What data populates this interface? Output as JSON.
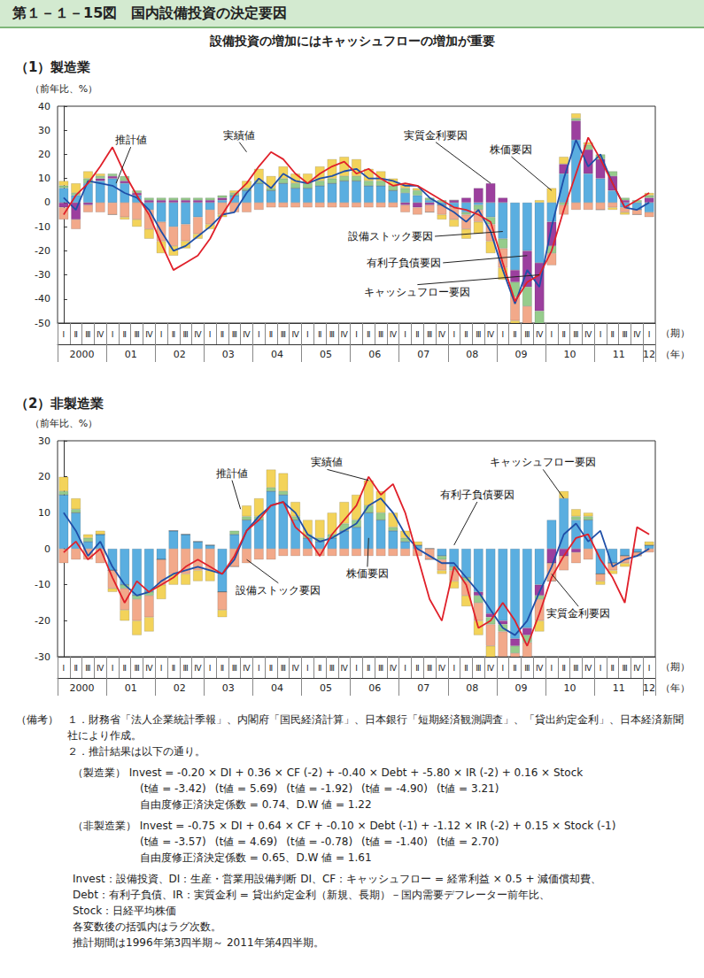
{
  "header": {
    "title": "第１－１－15図　国内設備投資の決定要因",
    "subtitle": "設備投資の増加にはキャッシュフローの増加が重要"
  },
  "chart_data": [
    {
      "type": "bar",
      "title": "（1）製造業",
      "ylabel": "（前年比、%）",
      "xlabel": "（期）",
      "year_label": "（年）",
      "stacked": true,
      "grid": false,
      "categories": [
        "Ⅰ",
        "Ⅱ",
        "Ⅲ",
        "Ⅳ",
        "Ⅰ",
        "Ⅱ",
        "Ⅲ",
        "Ⅳ",
        "Ⅰ",
        "Ⅱ",
        "Ⅲ",
        "Ⅳ",
        "Ⅰ",
        "Ⅱ",
        "Ⅲ",
        "Ⅳ",
        "Ⅰ",
        "Ⅱ",
        "Ⅲ",
        "Ⅳ",
        "Ⅰ",
        "Ⅱ",
        "Ⅲ",
        "Ⅳ",
        "Ⅰ",
        "Ⅱ",
        "Ⅲ",
        "Ⅳ",
        "Ⅰ",
        "Ⅱ",
        "Ⅲ",
        "Ⅳ",
        "Ⅰ",
        "Ⅱ",
        "Ⅲ",
        "Ⅳ",
        "Ⅰ",
        "Ⅱ",
        "Ⅲ",
        "Ⅳ",
        "Ⅰ",
        "Ⅱ",
        "Ⅲ",
        "Ⅳ",
        "Ⅰ",
        "Ⅱ",
        "Ⅲ",
        "Ⅳ",
        "Ⅰ"
      ],
      "years": [
        "2000",
        "01",
        "02",
        "03",
        "04",
        "05",
        "06",
        "07",
        "08",
        "09",
        "10",
        "11",
        "12"
      ],
      "ylim": [
        -50,
        40
      ],
      "yticks": [
        -50,
        -40,
        -30,
        -20,
        -10,
        0,
        10,
        20,
        30,
        40
      ],
      "series": [
        {
          "name": "キャッシュフロー要因",
          "type": "bar",
          "color": "#5aaee0",
          "values": [
            6,
            3,
            8,
            9,
            10,
            8,
            3,
            -3,
            -8,
            -10,
            -9,
            -6,
            -3,
            1,
            3,
            5,
            8,
            5,
            8,
            6,
            6,
            7,
            8,
            9,
            9,
            7,
            7,
            5,
            4,
            3,
            1,
            -1,
            -2,
            -4,
            -1,
            -6,
            -15,
            -28,
            -20,
            -25,
            -8,
            12,
            26,
            12,
            10,
            5,
            -2,
            -3,
            -4
          ]
        },
        {
          "name": "有利子負債要因",
          "type": "bar",
          "color": "#9c3f9e",
          "values": [
            -2,
            -7,
            -1,
            1,
            1,
            1,
            1,
            1,
            1,
            1,
            1,
            1,
            1,
            1,
            0,
            0,
            0,
            0,
            0,
            0,
            0,
            0,
            0,
            0,
            0,
            0,
            0,
            0,
            -1,
            -2,
            -1,
            0,
            1,
            2,
            6,
            8,
            2,
            -5,
            -15,
            -20,
            -10,
            4,
            8,
            10,
            8,
            6,
            1,
            0,
            2
          ]
        },
        {
          "name": "設備ストック要因",
          "type": "bar",
          "color": "#96cc8c",
          "values": [
            1,
            1,
            2,
            1,
            1,
            2,
            1,
            1,
            1,
            1,
            1,
            1,
            1,
            1,
            1,
            1,
            1,
            1,
            2,
            2,
            2,
            2,
            2,
            2,
            2,
            2,
            2,
            2,
            2,
            2,
            1,
            1,
            0,
            -1,
            -2,
            -3,
            -4,
            -6,
            -8,
            -6,
            -3,
            -1,
            1,
            2,
            2,
            2,
            1,
            1,
            1
          ]
        },
        {
          "name": "実質金利要因",
          "type": "bar",
          "color": "#f2a98a",
          "values": [
            -5,
            -4,
            -3,
            -4,
            -5,
            -6,
            -7,
            -8,
            -8,
            -8,
            -7,
            -7,
            -6,
            -5,
            -4,
            -4,
            -3,
            -2,
            -2,
            -2,
            -2,
            -2,
            -2,
            -2,
            -2,
            -2,
            -2,
            -2,
            -3,
            -3,
            -3,
            -4,
            -5,
            -6,
            -5,
            -7,
            -8,
            -10,
            -10,
            -8,
            -5,
            -4,
            -3,
            -3,
            -3,
            -2,
            -2,
            -2,
            -2
          ]
        },
        {
          "name": "株価要因",
          "type": "bar",
          "color": "#f3d35a",
          "values": [
            2,
            4,
            3,
            1,
            0,
            -1,
            -3,
            -4,
            -5,
            -4,
            -3,
            -2,
            -2,
            -1,
            1,
            3,
            5,
            5,
            5,
            4,
            4,
            6,
            8,
            8,
            7,
            5,
            4,
            3,
            2,
            1,
            0,
            -2,
            -3,
            -4,
            -5,
            -5,
            -5,
            -4,
            -2,
            1,
            6,
            3,
            2,
            1,
            0,
            -1,
            -1,
            0,
            1
          ]
        },
        {
          "name": "推計値",
          "type": "line",
          "color": "#1f4fa8",
          "values": [
            2,
            -3,
            9,
            8,
            7,
            4,
            2,
            -3,
            -12,
            -20,
            -18,
            -14,
            -10,
            -5,
            -4,
            4,
            10,
            6,
            12,
            9,
            8,
            10,
            11,
            13,
            14,
            10,
            10,
            9,
            7,
            7,
            2,
            -1,
            -4,
            -8,
            -3,
            -12,
            -28,
            -42,
            -28,
            -35,
            -10,
            10,
            26,
            15,
            20,
            8,
            -2,
            -3,
            0
          ]
        },
        {
          "name": "実績値",
          "type": "line",
          "color": "#e0202a",
          "values": [
            -5,
            3,
            8,
            15,
            23,
            12,
            3,
            -5,
            -17,
            -28,
            -25,
            -22,
            -15,
            -5,
            3,
            8,
            15,
            21,
            18,
            12,
            8,
            12,
            15,
            17,
            12,
            14,
            10,
            7,
            8,
            7,
            4,
            1,
            -2,
            -3,
            -5,
            -8,
            -25,
            -41,
            -33,
            -30,
            -20,
            -3,
            12,
            27,
            18,
            8,
            -2,
            1,
            4
          ]
        }
      ],
      "annotations": [
        {
          "series": "推計値",
          "x": 5.5,
          "y": 26,
          "to_x": 4.3,
          "to_y": 8
        },
        {
          "series": "実績値",
          "x": 14.4,
          "y": 28,
          "to_x": 15,
          "to_y": 21
        },
        {
          "series": "実質金利要因",
          "x": 30.5,
          "y": 28,
          "to_x": 35,
          "to_y": 8
        },
        {
          "series": "株価要因",
          "x": 36.7,
          "y": 22,
          "to_x": 40,
          "to_y": 5
        },
        {
          "series": "設備ストック要因",
          "x": 26.8,
          "y": -14,
          "to_x": 36,
          "to_y": -12
        },
        {
          "series": "有利子負債要因",
          "x": 27.9,
          "y": -25,
          "to_x": 38,
          "to_y": -22
        },
        {
          "series": "キャッシュフロー要因",
          "x": 29,
          "y": -37,
          "to_x": 39,
          "to_y": -30
        }
      ]
    },
    {
      "type": "bar",
      "title": "（2）非製造業",
      "ylabel": "（前年比、%）",
      "xlabel": "（期）",
      "year_label": "（年）",
      "stacked": true,
      "grid": false,
      "categories": [
        "Ⅰ",
        "Ⅱ",
        "Ⅲ",
        "Ⅳ",
        "Ⅰ",
        "Ⅱ",
        "Ⅲ",
        "Ⅳ",
        "Ⅰ",
        "Ⅱ",
        "Ⅲ",
        "Ⅳ",
        "Ⅰ",
        "Ⅱ",
        "Ⅲ",
        "Ⅳ",
        "Ⅰ",
        "Ⅱ",
        "Ⅲ",
        "Ⅳ",
        "Ⅰ",
        "Ⅱ",
        "Ⅲ",
        "Ⅳ",
        "Ⅰ",
        "Ⅱ",
        "Ⅲ",
        "Ⅳ",
        "Ⅰ",
        "Ⅱ",
        "Ⅲ",
        "Ⅳ",
        "Ⅰ",
        "Ⅱ",
        "Ⅲ",
        "Ⅳ",
        "Ⅰ",
        "Ⅱ",
        "Ⅲ",
        "Ⅳ",
        "Ⅰ",
        "Ⅱ",
        "Ⅲ",
        "Ⅳ",
        "Ⅰ",
        "Ⅱ",
        "Ⅲ",
        "Ⅳ",
        "Ⅰ"
      ],
      "years": [
        "2000",
        "01",
        "02",
        "03",
        "04",
        "05",
        "06",
        "07",
        "08",
        "09",
        "10",
        "11",
        "12"
      ],
      "ylim": [
        -30,
        30
      ],
      "yticks": [
        -30,
        -20,
        -10,
        0,
        10,
        20,
        30
      ],
      "series": [
        {
          "name": "キャッシュフロー要因",
          "type": "bar",
          "color": "#5aaee0",
          "values": [
            15,
            10,
            2,
            4,
            -6,
            -10,
            -13,
            -12,
            -3,
            5,
            4,
            2,
            1,
            -12,
            4,
            8,
            8,
            16,
            15,
            8,
            3,
            2,
            3,
            5,
            6,
            10,
            8,
            5,
            2,
            1,
            0,
            -2,
            -5,
            -8,
            -12,
            -18,
            -20,
            -25,
            -22,
            -10,
            8,
            14,
            8,
            8,
            -7,
            -4,
            -2,
            -1,
            1
          ]
        },
        {
          "name": "有利子負債要因",
          "type": "bar",
          "color": "#9c3f9e",
          "values": [
            0,
            0,
            0,
            0,
            0,
            0,
            0,
            0,
            0,
            0,
            0,
            0,
            0,
            0,
            0,
            0,
            0,
            0,
            0,
            0,
            0,
            0,
            0,
            0,
            0,
            0,
            0,
            0,
            0,
            0,
            0,
            0,
            0,
            0,
            -1,
            -1,
            -1,
            -2,
            -2,
            -3,
            -4,
            -2,
            -1,
            0,
            0,
            0,
            0,
            0,
            0
          ]
        },
        {
          "name": "設備ストック要因",
          "type": "bar",
          "color": "#96cc8c",
          "values": [
            1,
            1,
            1,
            0,
            0,
            -1,
            -1,
            -1,
            0,
            0,
            0,
            0,
            0,
            0,
            1,
            1,
            1,
            1,
            1,
            1,
            1,
            1,
            1,
            2,
            2,
            2,
            2,
            1,
            1,
            0,
            0,
            -1,
            -1,
            -1,
            -2,
            -2,
            -2,
            -2,
            -2,
            -1,
            0,
            0,
            1,
            1,
            0,
            0,
            0,
            0,
            0
          ]
        },
        {
          "name": "実質金利要因",
          "type": "bar",
          "color": "#f2a98a",
          "values": [
            -4,
            -3,
            -3,
            -4,
            -5,
            -6,
            -6,
            -6,
            -7,
            -7,
            -7,
            -6,
            -6,
            -5,
            -5,
            -4,
            -3,
            -3,
            -2,
            -2,
            -2,
            -2,
            -2,
            -2,
            -2,
            -2,
            -2,
            -2,
            -2,
            -2,
            -3,
            -3,
            -3,
            -4,
            -5,
            -6,
            -7,
            -7,
            -6,
            -6,
            -5,
            -4,
            -3,
            -3,
            -2,
            -2,
            -2,
            -1,
            -1
          ]
        },
        {
          "name": "株価要因",
          "type": "bar",
          "color": "#f3d35a",
          "values": [
            4,
            3,
            1,
            1,
            -1,
            -3,
            -4,
            -4,
            -4,
            -3,
            -3,
            -3,
            -3,
            -2,
            0,
            3,
            5,
            5,
            5,
            4,
            4,
            5,
            6,
            6,
            7,
            7,
            6,
            4,
            2,
            1,
            0,
            -1,
            -2,
            -3,
            -4,
            -5,
            -6,
            -6,
            -5,
            -3,
            0,
            2,
            2,
            1,
            -1,
            -1,
            -1,
            0,
            1
          ]
        },
        {
          "name": "推計値",
          "type": "line",
          "color": "#1f4fa8",
          "values": [
            10,
            5,
            -2,
            2,
            -5,
            -10,
            -13,
            -12,
            -9,
            -7,
            -6,
            -5,
            -6,
            -7,
            -3,
            5,
            9,
            12,
            13,
            10,
            4,
            2,
            3,
            5,
            7,
            12,
            14,
            10,
            4,
            0,
            -2,
            -4,
            -4,
            -8,
            -12,
            -17,
            -22,
            -24,
            -20,
            -12,
            -5,
            4,
            7,
            2,
            5,
            -5,
            -3,
            -2,
            0
          ]
        },
        {
          "name": "実績値",
          "type": "line",
          "color": "#e0202a",
          "values": [
            -1,
            2,
            -3,
            0,
            -8,
            -15,
            -9,
            -12,
            -10,
            -8,
            -5,
            -3,
            -5,
            -7,
            -2,
            5,
            8,
            12,
            13,
            6,
            3,
            -2,
            4,
            8,
            12,
            20,
            15,
            18,
            10,
            -2,
            -14,
            -20,
            -5,
            -10,
            -22,
            -20,
            -15,
            -20,
            -27,
            -18,
            -8,
            -2,
            3,
            4,
            -3,
            -8,
            -15,
            6,
            4
          ]
        }
      ],
      "annotations": [
        {
          "series": "推計値",
          "x": 13.8,
          "y": 21,
          "to_x": 14.5,
          "to_y": 11
        },
        {
          "series": "実績値",
          "x": 21.6,
          "y": 24,
          "to_x": 25,
          "to_y": 19
        },
        {
          "series": "キャッシュフロー要因",
          "x": 39.3,
          "y": 24,
          "to_x": 41,
          "to_y": 14
        },
        {
          "series": "有利子負債要因",
          "x": 33.9,
          "y": 15,
          "to_x": 32,
          "to_y": 1
        },
        {
          "series": "株価要因",
          "x": 24.9,
          "y": -7,
          "to_x": 25,
          "to_y": 3
        },
        {
          "series": "設備ストック要因",
          "x": 17.6,
          "y": -11.5,
          "to_x": 15,
          "to_y": -3
        },
        {
          "series": "実質金利要因",
          "x": 42.2,
          "y": -18,
          "to_x": 40,
          "to_y": -7
        }
      ]
    }
  ],
  "notes": {
    "label": "（備考）",
    "items": [
      "１．財務省「法人企業統計季報」、内閣府「国民経済計算」、日本銀行「短期経済観測調査」、「貸出約定金利」、日本経済新聞社により作成。",
      "２．推計結果は以下の通り。"
    ],
    "equations": [
      {
        "sector": "（製造業）",
        "formula": "Invest = -0.20 × DI + 0.36 × CF (-2) + -0.40 × Debt + -5.80 × IR (-2) + 0.16 × Stock",
        "t_values": [
          "(t値 = -3.42)",
          "(t値 = 5.69)",
          "(t値 = -1.92)",
          "(t値 = -4.90)",
          "(t値 = 3.21)"
        ],
        "fit": "自由度修正済決定係数 = 0.74、D.W 値 = 1.22"
      },
      {
        "sector": "（非製造業）",
        "formula": "Invest = -0.75 × DI + 0.64 × CF + -0.10 × Debt (-1) + -1.12 × IR (-2) + 0.15 × Stock (-1)",
        "t_values": [
          "(t値 = -3.57)",
          "(t値 = 4.69)",
          "(t値 = -0.78)",
          "(t値 = -1.40)",
          "(t値 = 2.70)"
        ],
        "fit": "自由度修正済決定係数 = 0.65、D.W 値 = 1.61"
      }
    ],
    "definitions": [
      "Invest：設備投資、DI：生産・営業用設備判断 DI、CF：キャッシュフロー = 経常利益 × 0.5 + 減価償却費、",
      "Debt：有利子負債、IR：実質金利 = 貸出約定金利（新規、長期）－国内需要デフレーター前年比、",
      "Stock：日経平均株価",
      "各変数後の括弧内はラグ次数。",
      "推計期間は1996年第3四半期～ 2011年第4四半期。"
    ]
  }
}
